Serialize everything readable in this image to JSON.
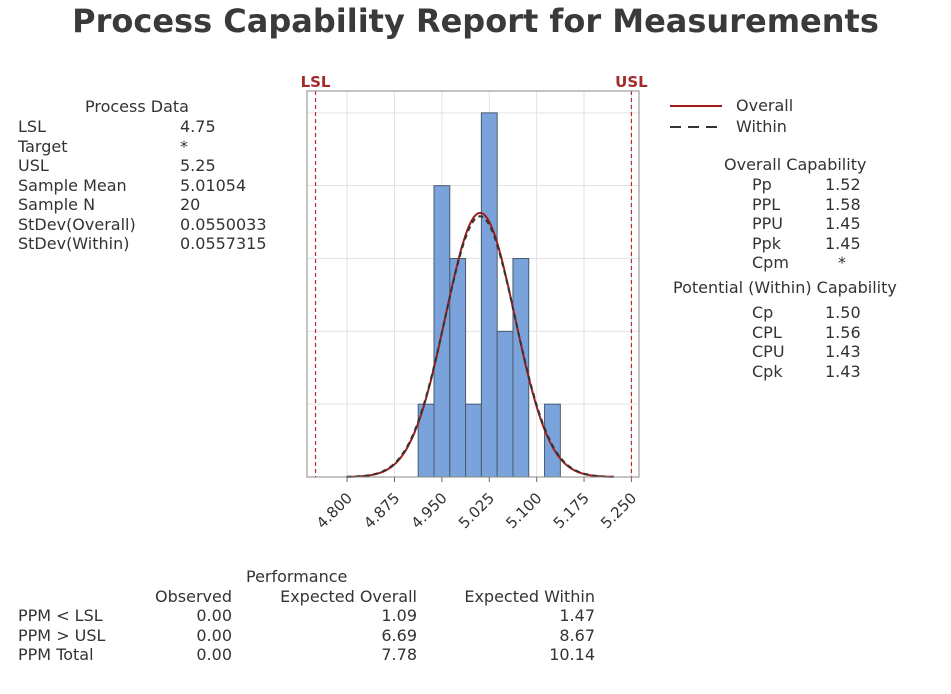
{
  "title": "Process Capability Report for Measurements",
  "process_data": {
    "heading": "Process Data",
    "rows": [
      {
        "label": "LSL",
        "value": "4.75"
      },
      {
        "label": "Target",
        "value": "*"
      },
      {
        "label": "USL",
        "value": "5.25"
      },
      {
        "label": "Sample Mean",
        "value": "5.01054"
      },
      {
        "label": "Sample N",
        "value": "20"
      },
      {
        "label": "StDev(Overall)",
        "value": "0.0550033"
      },
      {
        "label": "StDev(Within)",
        "value": "0.0557315"
      }
    ]
  },
  "legend": {
    "overall": "Overall",
    "within": "Within"
  },
  "overall_capability": {
    "heading": "Overall Capability",
    "rows": [
      {
        "label": "Pp",
        "value": "1.52"
      },
      {
        "label": "PPL",
        "value": "1.58"
      },
      {
        "label": "PPU",
        "value": "1.45"
      },
      {
        "label": "Ppk",
        "value": "1.45"
      },
      {
        "label": "Cpm",
        "value": "*"
      }
    ]
  },
  "within_capability": {
    "heading": "Potential (Within) Capability",
    "rows": [
      {
        "label": "Cp",
        "value": "1.50"
      },
      {
        "label": "CPL",
        "value": "1.56"
      },
      {
        "label": "CPU",
        "value": "1.43"
      },
      {
        "label": "Cpk",
        "value": "1.43"
      }
    ]
  },
  "performance": {
    "heading": "Performance",
    "columns": [
      "Observed",
      "Expected Overall",
      "Expected Within"
    ],
    "rows": [
      {
        "label": "PPM < LSL",
        "values": [
          "0.00",
          "1.09",
          "1.47"
        ]
      },
      {
        "label": "PPM > USL",
        "values": [
          "0.00",
          "6.69",
          "8.67"
        ]
      },
      {
        "label": "PPM Total",
        "values": [
          "0.00",
          "7.78",
          "10.14"
        ]
      }
    ]
  },
  "chart_data": {
    "type": "bar",
    "bin_midpoints": [
      4.925,
      4.95,
      4.975,
      5.0,
      5.025,
      5.05,
      5.075,
      5.1,
      5.125
    ],
    "bin_width": 0.025,
    "counts": [
      1,
      4,
      3,
      1,
      5,
      2,
      3,
      0,
      1
    ],
    "xlim": [
      4.7365,
      5.262
    ],
    "ylim": [
      0,
      5.3
    ],
    "x_ticks": [
      "4.800",
      "4.875",
      "4.950",
      "5.025",
      "5.100",
      "5.175",
      "5.250"
    ],
    "grid": true,
    "spec_limits": [
      {
        "label": "LSL",
        "value": 4.75
      },
      {
        "label": "USL",
        "value": 5.25
      }
    ],
    "curves": [
      {
        "name": "Overall",
        "mean": 5.01054,
        "stdev": 0.0550033,
        "style": "solid"
      },
      {
        "name": "Within",
        "mean": 5.01054,
        "stdev": 0.0557315,
        "style": "dashed"
      }
    ],
    "legend_position": "right",
    "colors": {
      "bar": "#7ba3db",
      "bar_edge": "#4a5a70",
      "overall": "#a01c1c",
      "within": "#333333",
      "spec": "#c0282d",
      "spec_label": "#a52a2a"
    }
  }
}
